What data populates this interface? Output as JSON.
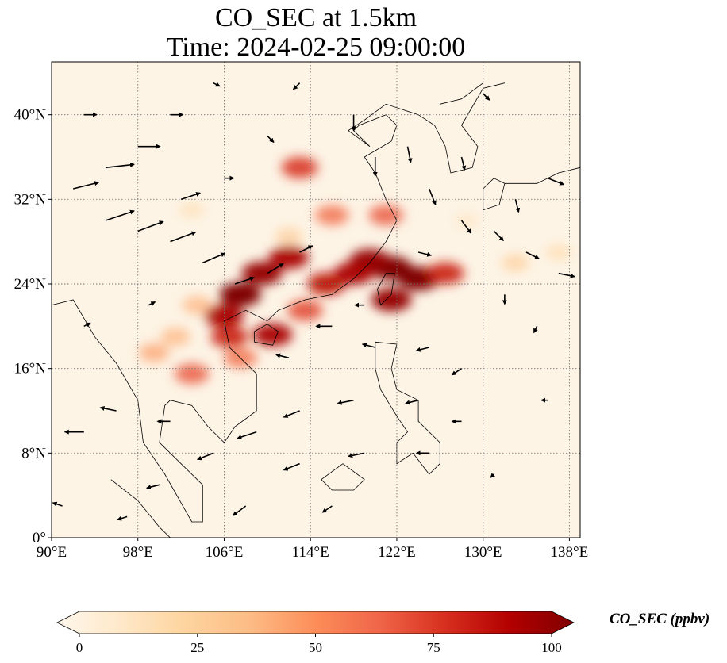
{
  "title": {
    "line1": "CO_SEC at 1.5km",
    "line2": "Time: 2024-02-25 09:00:00"
  },
  "map": {
    "lon_range": [
      90,
      139
    ],
    "lat_range": [
      0,
      45
    ],
    "lon_ticks": [
      {
        "value": 90,
        "label": "90°E"
      },
      {
        "value": 98,
        "label": "98°E"
      },
      {
        "value": 106,
        "label": "106°E"
      },
      {
        "value": 114,
        "label": "114°E"
      },
      {
        "value": 122,
        "label": "122°E"
      },
      {
        "value": 130,
        "label": "130°E"
      },
      {
        "value": 138,
        "label": "138°E"
      }
    ],
    "lat_ticks": [
      {
        "value": 0,
        "label": "0°"
      },
      {
        "value": 8,
        "label": "8°N"
      },
      {
        "value": 16,
        "label": "16°N"
      },
      {
        "value": 24,
        "label": "24°N"
      },
      {
        "value": 32,
        "label": "32°N"
      },
      {
        "value": 40,
        "label": "40°N"
      }
    ],
    "gridlines": "dotted",
    "background_color": "#fdf4e6",
    "coastline_color": "#000000"
  },
  "colorbar": {
    "label": "CO_SEC (ppbv)",
    "colormap": "OrRd",
    "range": [
      0,
      100
    ],
    "extend": "both",
    "ticks": [
      {
        "value": 0,
        "label": "0"
      },
      {
        "value": 25,
        "label": "25"
      },
      {
        "value": 50,
        "label": "50"
      },
      {
        "value": 75,
        "label": "75"
      },
      {
        "value": 100,
        "label": "100"
      }
    ],
    "stops": [
      "#fff7ec",
      "#fee8c8",
      "#fdd49e",
      "#fdbb84",
      "#fc8d59",
      "#ef6548",
      "#d7301f",
      "#b30000",
      "#7f0000"
    ]
  },
  "concentration_plumes": [
    {
      "lon": 121.5,
      "lat": 25.5,
      "value": 100
    },
    {
      "lon": 124.0,
      "lat": 24.5,
      "value": 100
    },
    {
      "lon": 119.5,
      "lat": 26.2,
      "value": 95
    },
    {
      "lon": 126.5,
      "lat": 25.0,
      "value": 80
    },
    {
      "lon": 121.5,
      "lat": 22.5,
      "value": 95
    },
    {
      "lon": 118.0,
      "lat": 25.0,
      "value": 90
    },
    {
      "lon": 115.5,
      "lat": 24.0,
      "value": 85
    },
    {
      "lon": 112.0,
      "lat": 26.5,
      "value": 90
    },
    {
      "lon": 109.5,
      "lat": 25.0,
      "value": 95
    },
    {
      "lon": 107.5,
      "lat": 23.0,
      "value": 100
    },
    {
      "lon": 106.0,
      "lat": 21.0,
      "value": 90
    },
    {
      "lon": 106.5,
      "lat": 19.0,
      "value": 80
    },
    {
      "lon": 110.5,
      "lat": 19.2,
      "value": 90
    },
    {
      "lon": 113.5,
      "lat": 21.5,
      "value": 70
    },
    {
      "lon": 107.5,
      "lat": 17.0,
      "value": 60
    },
    {
      "lon": 103.0,
      "lat": 15.5,
      "value": 65
    },
    {
      "lon": 99.5,
      "lat": 17.5,
      "value": 45
    },
    {
      "lon": 101.5,
      "lat": 19.0,
      "value": 40
    },
    {
      "lon": 103.5,
      "lat": 22.0,
      "value": 40
    },
    {
      "lon": 113.0,
      "lat": 35.0,
      "value": 75
    },
    {
      "lon": 116.0,
      "lat": 30.5,
      "value": 60
    },
    {
      "lon": 121.0,
      "lat": 30.5,
      "value": 65
    },
    {
      "lon": 133.0,
      "lat": 26.0,
      "value": 30
    },
    {
      "lon": 137.0,
      "lat": 27.0,
      "value": 22
    },
    {
      "lon": 103.0,
      "lat": 31.0,
      "value": 20
    },
    {
      "lon": 112.0,
      "lat": 28.5,
      "value": 30
    },
    {
      "lon": 128.5,
      "lat": 30.0,
      "value": 15
    }
  ],
  "wind_field": {
    "color": "#000000",
    "vectors": [
      {
        "lon": 92,
        "lat": 33,
        "u": 8,
        "v": 2
      },
      {
        "lon": 95,
        "lat": 35,
        "u": 9,
        "v": 1
      },
      {
        "lon": 98,
        "lat": 37,
        "u": 7,
        "v": 0
      },
      {
        "lon": 95,
        "lat": 30,
        "u": 9,
        "v": 3
      },
      {
        "lon": 98,
        "lat": 29,
        "u": 8,
        "v": 3
      },
      {
        "lon": 101,
        "lat": 28,
        "u": 8,
        "v": 3
      },
      {
        "lon": 104,
        "lat": 26,
        "u": 7,
        "v": 3
      },
      {
        "lon": 107,
        "lat": 24,
        "u": 6,
        "v": 2
      },
      {
        "lon": 110,
        "lat": 25,
        "u": 5,
        "v": 3
      },
      {
        "lon": 113,
        "lat": 27,
        "u": 4,
        "v": 2
      },
      {
        "lon": 102,
        "lat": 32,
        "u": 6,
        "v": 2
      },
      {
        "lon": 106,
        "lat": 34,
        "u": 3,
        "v": 0
      },
      {
        "lon": 110,
        "lat": 38,
        "u": 2,
        "v": -2
      },
      {
        "lon": 118,
        "lat": 40,
        "u": 0,
        "v": -5
      },
      {
        "lon": 120,
        "lat": 36,
        "u": 0,
        "v": -6
      },
      {
        "lon": 123,
        "lat": 37,
        "u": 1,
        "v": -5
      },
      {
        "lon": 125,
        "lat": 33,
        "u": 2,
        "v": -5
      },
      {
        "lon": 128,
        "lat": 30,
        "u": 3,
        "v": -4
      },
      {
        "lon": 131,
        "lat": 29,
        "u": 3,
        "v": -3
      },
      {
        "lon": 134,
        "lat": 27,
        "u": 4,
        "v": -2
      },
      {
        "lon": 137,
        "lat": 25,
        "u": 5,
        "v": -1
      },
      {
        "lon": 133,
        "lat": 32,
        "u": 1,
        "v": -4
      },
      {
        "lon": 136,
        "lat": 34,
        "u": 5,
        "v": -2
      },
      {
        "lon": 128,
        "lat": 36,
        "u": 1,
        "v": -4
      },
      {
        "lon": 124,
        "lat": 27,
        "u": 4,
        "v": -1
      },
      {
        "lon": 119,
        "lat": 22,
        "u": -3,
        "v": 0
      },
      {
        "lon": 116,
        "lat": 20,
        "u": -5,
        "v": 0
      },
      {
        "lon": 112,
        "lat": 17,
        "u": -4,
        "v": 1
      },
      {
        "lon": 120,
        "lat": 18,
        "u": -4,
        "v": 1
      },
      {
        "lon": 125,
        "lat": 18,
        "u": -4,
        "v": -1
      },
      {
        "lon": 128,
        "lat": 16,
        "u": -3,
        "v": -2
      },
      {
        "lon": 124,
        "lat": 13,
        "u": -4,
        "v": -1
      },
      {
        "lon": 118,
        "lat": 13,
        "u": -5,
        "v": -1
      },
      {
        "lon": 113,
        "lat": 12,
        "u": -5,
        "v": -2
      },
      {
        "lon": 109,
        "lat": 10,
        "u": -6,
        "v": -2
      },
      {
        "lon": 105,
        "lat": 8,
        "u": -5,
        "v": -2
      },
      {
        "lon": 113,
        "lat": 7,
        "u": -5,
        "v": -2
      },
      {
        "lon": 119,
        "lat": 8,
        "u": -5,
        "v": -1
      },
      {
        "lon": 125,
        "lat": 8,
        "u": -4,
        "v": 0
      },
      {
        "lon": 100,
        "lat": 5,
        "u": -4,
        "v": -1
      },
      {
        "lon": 108,
        "lat": 3,
        "u": -4,
        "v": -3
      },
      {
        "lon": 116,
        "lat": 3,
        "u": -3,
        "v": -2
      },
      {
        "lon": 96,
        "lat": 12,
        "u": -5,
        "v": 1
      },
      {
        "lon": 93,
        "lat": 10,
        "u": -6,
        "v": 0
      },
      {
        "lon": 101,
        "lat": 11,
        "u": -4,
        "v": 0
      },
      {
        "lon": 91,
        "lat": 3,
        "u": -3,
        "v": 1
      },
      {
        "lon": 97,
        "lat": 2,
        "u": -3,
        "v": -1
      },
      {
        "lon": 93,
        "lat": 20,
        "u": 2,
        "v": 1
      },
      {
        "lon": 99,
        "lat": 22,
        "u": 2,
        "v": 1
      },
      {
        "lon": 93,
        "lat": 40,
        "u": 4,
        "v": 0
      },
      {
        "lon": 101,
        "lat": 40,
        "u": 4,
        "v": 0
      },
      {
        "lon": 105,
        "lat": 43,
        "u": 2,
        "v": -1
      },
      {
        "lon": 113,
        "lat": 43,
        "u": -2,
        "v": -2
      },
      {
        "lon": 130,
        "lat": 42,
        "u": 2,
        "v": -2
      },
      {
        "lon": 135,
        "lat": 20,
        "u": -1,
        "v": -2
      },
      {
        "lon": 132,
        "lat": 23,
        "u": 0,
        "v": -3
      },
      {
        "lon": 136,
        "lat": 13,
        "u": -2,
        "v": 0
      },
      {
        "lon": 131,
        "lat": 6,
        "u": -1,
        "v": -1
      },
      {
        "lon": 128,
        "lat": 11,
        "u": -3,
        "v": 0
      }
    ]
  }
}
